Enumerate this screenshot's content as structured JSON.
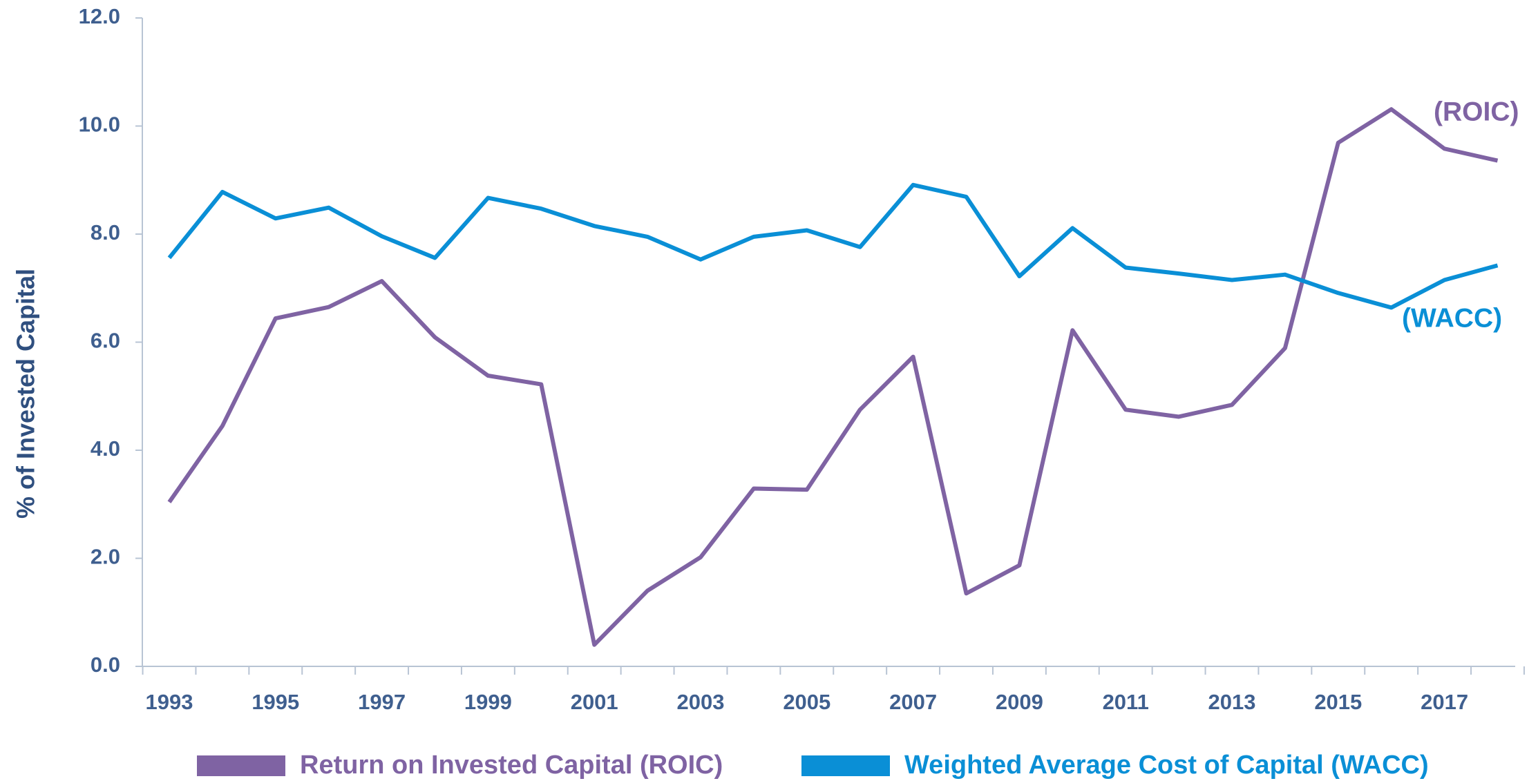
{
  "chart_data": {
    "type": "line",
    "y_label": "% of Invested Capital",
    "categories": [
      "1993",
      null,
      "1995",
      null,
      "1997",
      null,
      "1999",
      null,
      "2001",
      null,
      "2003",
      null,
      "2005",
      null,
      "2007",
      null,
      "2009",
      null,
      "2011",
      null,
      "2013",
      null,
      "2015",
      null,
      "2017",
      null
    ],
    "series": [
      {
        "name": "Return on Invested Capital (ROIC)",
        "color": "#7f63a3",
        "values": [
          3.04,
          4.45,
          6.44,
          6.65,
          7.13,
          6.09,
          5.38,
          5.22,
          0.4,
          1.4,
          2.02,
          3.29,
          3.27,
          4.75,
          5.73,
          1.35,
          1.87,
          6.22,
          4.75,
          4.62,
          4.84,
          5.89,
          9.69,
          10.31,
          9.58,
          9.36
        ]
      },
      {
        "name": "Weighted Average Cost of Capital (WACC)",
        "color": "#0a8fd6",
        "values": [
          7.56,
          8.78,
          8.29,
          8.49,
          7.96,
          7.56,
          8.67,
          8.47,
          8.15,
          7.95,
          7.53,
          7.95,
          8.07,
          7.76,
          8.91,
          8.69,
          7.22,
          8.11,
          7.38,
          7.27,
          7.15,
          7.25,
          6.91,
          6.64,
          7.15,
          7.42
        ]
      }
    ],
    "annotations": [
      "(ROIC)",
      "(WACC)"
    ],
    "ylim": [
      0,
      12
    ],
    "yticks": [
      {
        "value": 0,
        "label": "0.0"
      },
      {
        "value": 2,
        "label": "2.0"
      },
      {
        "value": 4,
        "label": "4.0"
      },
      {
        "value": 6,
        "label": "6.0"
      },
      {
        "value": 8,
        "label": "8.0"
      },
      {
        "value": 10,
        "label": "10.0"
      },
      {
        "value": 12,
        "label": "12.0"
      }
    ],
    "legend": "bottom"
  }
}
